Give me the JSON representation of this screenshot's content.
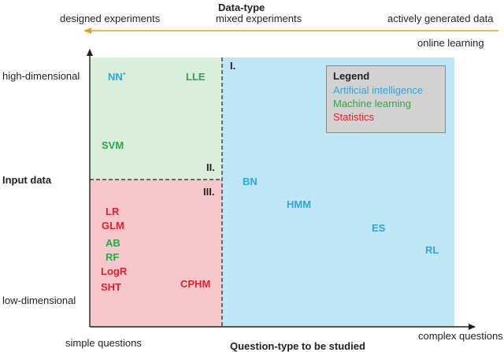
{
  "top_axis": {
    "title": "Data-type",
    "left_label": "designed experiments",
    "center_label": "mixed experiments",
    "right_label": "actively generated data",
    "right_sublabel": "online learning",
    "arrow_color": "#f39a1e"
  },
  "y_axis": {
    "title": "Input data",
    "top_label": "high-dimensional",
    "bottom_label": "low-dimensional"
  },
  "x_axis": {
    "title": "Question-type to be studied",
    "left_label": "simple questions",
    "right_label": "complex questions"
  },
  "regions": {
    "I": "I.",
    "II": "II.",
    "III": "III.",
    "colors": {
      "artificial_intelligence_region": "#bfe6f4",
      "machine_learning_region": "#d9eedb",
      "statistics_region": "#f6c8cc"
    }
  },
  "legend": {
    "title": "Legend",
    "items": [
      {
        "label": "Artificial intelligence",
        "color": "#29a8e0"
      },
      {
        "label": "Machine learning",
        "color": "#2aa848"
      },
      {
        "label": "Statistics",
        "color": "#e0202e"
      }
    ]
  },
  "methods": {
    "nn": "NN",
    "nn_sup": "+",
    "lle": "LLE",
    "svm": "SVM",
    "bn": "BN",
    "hmm": "HMM",
    "es": "ES",
    "rl": "RL",
    "lr": "LR",
    "glm": "GLM",
    "ab": "AB",
    "rf": "RF",
    "logr": "LogR",
    "sht": "SHT",
    "cphm": "CPHM"
  }
}
